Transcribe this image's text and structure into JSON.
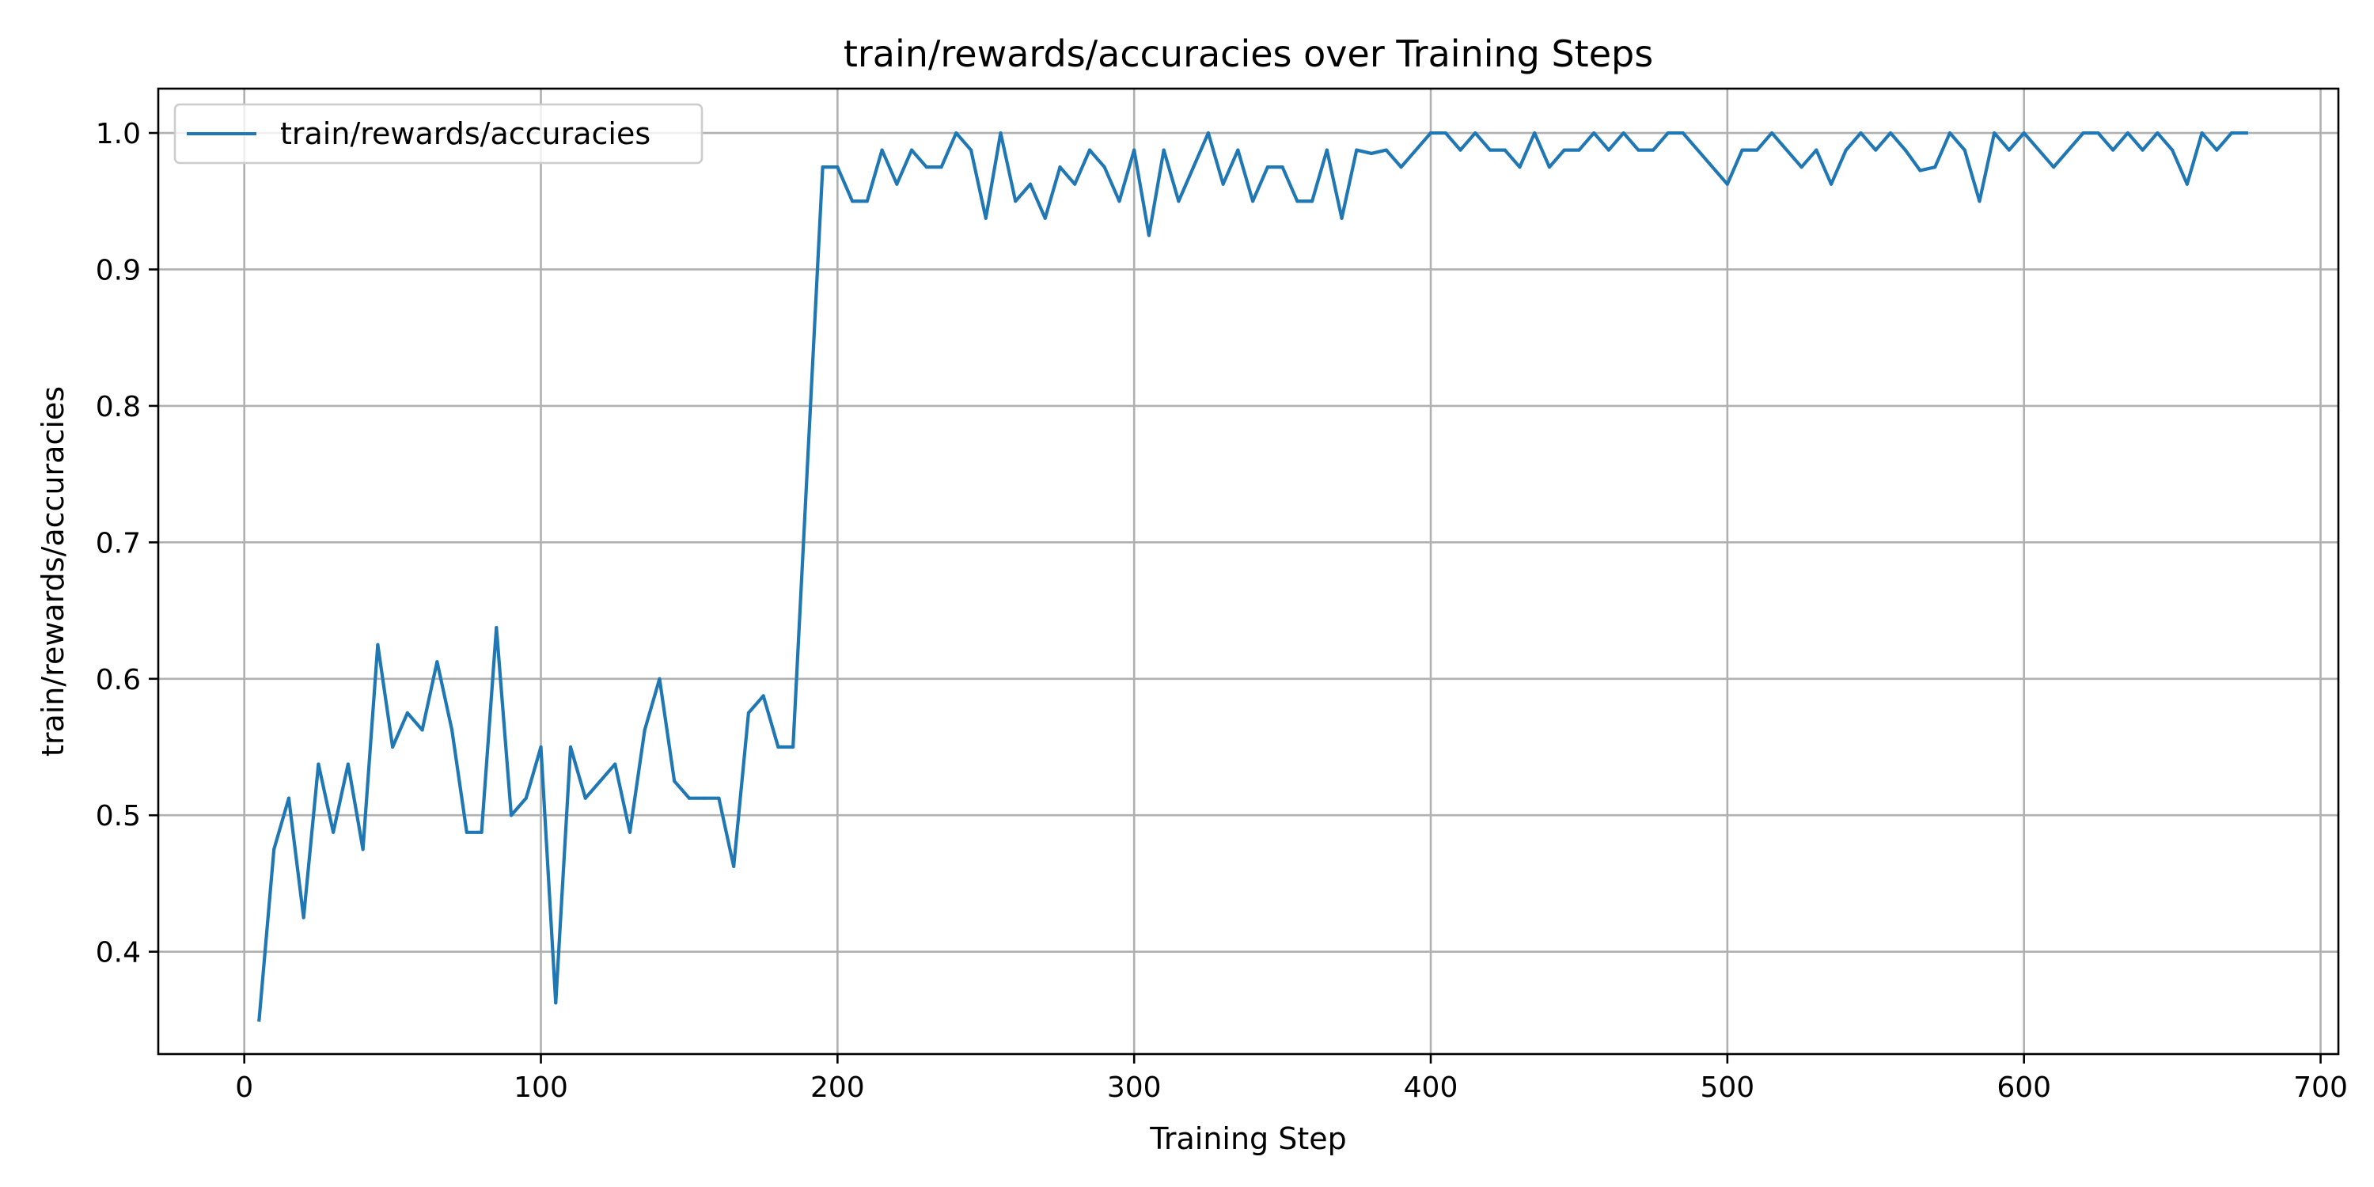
{
  "chart_data": {
    "type": "line",
    "title": "train/rewards/accuracies over Training Steps",
    "xlabel": "Training Step",
    "ylabel": "train/rewards/accuracies",
    "xlim": [
      -29,
      706
    ],
    "ylim": [
      0.325,
      1.0325
    ],
    "xticks": [
      0,
      100,
      200,
      300,
      400,
      500,
      600,
      700
    ],
    "yticks": [
      0.4,
      0.5,
      0.6,
      0.7,
      0.8,
      0.9,
      1.0
    ],
    "xtick_labels": [
      "0",
      "100",
      "200",
      "300",
      "400",
      "500",
      "600",
      "700"
    ],
    "ytick_labels": [
      "0.4",
      "0.5",
      "0.6",
      "0.7",
      "0.8",
      "0.9",
      "1.0"
    ],
    "grid": true,
    "legend_position": "upper-left",
    "series": [
      {
        "name": "train/rewards/accuracies",
        "color": "#1f77b4",
        "x": [
          5,
          10,
          15,
          20,
          25,
          30,
          35,
          40,
          45,
          50,
          55,
          60,
          65,
          70,
          75,
          80,
          85,
          90,
          95,
          100,
          105,
          110,
          115,
          120,
          125,
          130,
          135,
          140,
          145,
          150,
          155,
          160,
          165,
          170,
          175,
          180,
          185,
          195,
          200,
          205,
          210,
          215,
          220,
          225,
          230,
          235,
          240,
          245,
          250,
          255,
          260,
          265,
          270,
          275,
          280,
          285,
          290,
          295,
          300,
          305,
          310,
          315,
          320,
          325,
          330,
          335,
          340,
          345,
          350,
          355,
          360,
          365,
          370,
          375,
          380,
          385,
          390,
          400,
          405,
          410,
          415,
          420,
          425,
          430,
          435,
          440,
          445,
          450,
          455,
          460,
          465,
          470,
          475,
          480,
          485,
          500,
          505,
          510,
          515,
          525,
          530,
          535,
          540,
          545,
          550,
          555,
          560,
          565,
          570,
          575,
          580,
          585,
          590,
          595,
          600,
          610,
          620,
          625,
          630,
          635,
          640,
          645,
          650,
          655,
          660,
          665,
          670,
          675
        ],
        "y": [
          0.35,
          0.475,
          0.5125,
          0.425,
          0.5375,
          0.4875,
          0.5375,
          0.475,
          0.625,
          0.55,
          0.575,
          0.5625,
          0.6125,
          0.5625,
          0.4875,
          0.4875,
          0.6375,
          0.5,
          0.5125,
          0.55,
          0.3625,
          0.55,
          0.5125,
          0.525,
          0.5375,
          0.4875,
          0.5625,
          0.6,
          0.525,
          0.5125,
          0.5125,
          0.5125,
          0.4625,
          0.575,
          0.5875,
          0.55,
          0.55,
          0.975,
          0.975,
          0.95,
          0.95,
          0.9875,
          0.9625,
          0.9875,
          0.975,
          0.975,
          1.0,
          0.9875,
          0.9375,
          1.0,
          0.95,
          0.9625,
          0.9375,
          0.975,
          0.9625,
          0.9875,
          0.975,
          0.95,
          0.9875,
          0.925,
          0.9875,
          0.95,
          0.975,
          1.0,
          0.9625,
          0.9875,
          0.95,
          0.975,
          0.975,
          0.95,
          0.95,
          0.9875,
          0.9375,
          0.9875,
          0.985,
          0.9875,
          0.975,
          1.0,
          1.0,
          0.9875,
          1.0,
          0.9875,
          0.9875,
          0.975,
          1.0,
          0.975,
          0.9875,
          0.9875,
          1.0,
          0.9875,
          1.0,
          0.9875,
          0.9875,
          1.0,
          1.0,
          0.9625,
          0.9875,
          0.9875,
          1.0,
          0.975,
          0.9875,
          0.9625,
          0.9875,
          1.0,
          0.9875,
          1.0,
          0.9875,
          0.9725,
          0.975,
          1.0,
          0.9875,
          0.95,
          1.0,
          0.9875,
          1.0,
          0.975,
          1.0,
          1.0,
          0.9875,
          1.0,
          0.9875,
          1.0,
          0.9875,
          0.9625,
          1.0,
          0.9875,
          1.0,
          1.0
        ]
      }
    ]
  }
}
